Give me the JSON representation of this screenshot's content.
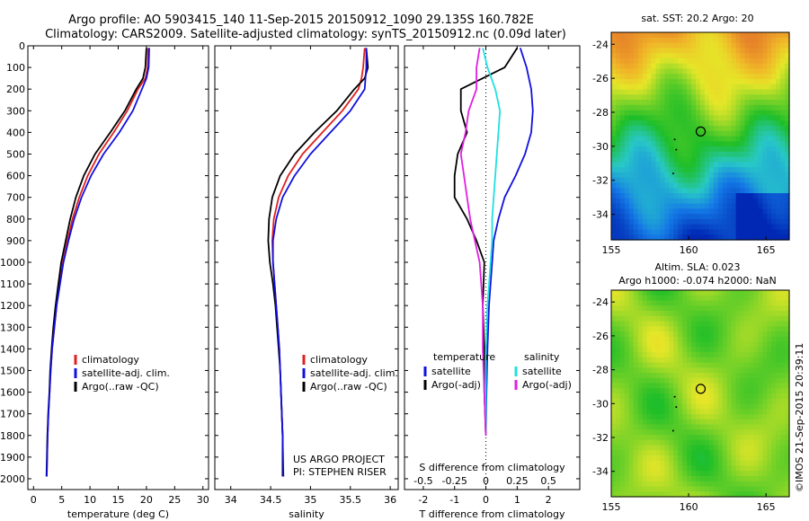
{
  "header": {
    "line1": "Argo profile: AO 5903415_140 11-Sep-2015 20150912_1090 29.135S 160.782E",
    "line2": "Climatology: CARS2009. Satellite-adjusted climatology: synTS_20150912.nc (0.09d later)"
  },
  "colors": {
    "climatology": "#e02020",
    "satellite": "#1010e0",
    "argo": "#000000",
    "sal_satellite": "#20e0e0",
    "sal_argo": "#e020e0"
  },
  "credits": {
    "project": "US ARGO PROJECT",
    "pi": "PI: STEPHEN RISER"
  },
  "timestamp": "©IMOS 21-Sep-2015 20:39:11",
  "chart_data": [
    {
      "id": "temperature",
      "type": "line",
      "xlabel": "temperature (deg C)",
      "xlim": [
        -1,
        31
      ],
      "ylim": [
        2050,
        0
      ],
      "xticks": [
        0,
        5,
        10,
        15,
        20,
        25,
        30
      ],
      "yticks": [
        0,
        100,
        200,
        300,
        400,
        500,
        600,
        700,
        800,
        900,
        1000,
        1100,
        1200,
        1300,
        1400,
        1500,
        1600,
        1700,
        1800,
        1900,
        2000
      ],
      "legend": [
        "climatology",
        "satellite-adj. clim.",
        "Argo(..raw -QC)"
      ],
      "series": [
        {
          "name": "climatology",
          "x": [
            20.3,
            20.2,
            19.8,
            18.5,
            16.6,
            14.2,
            11.6,
            9.6,
            8.1,
            6.9,
            6.0,
            5.2,
            4.6,
            4.1,
            3.7,
            3.3,
            3.05,
            2.85,
            2.65,
            2.5,
            2.35
          ],
          "y": [
            10,
            100,
            150,
            200,
            300,
            400,
            500,
            600,
            700,
            800,
            900,
            1000,
            1100,
            1200,
            1300,
            1400,
            1500,
            1600,
            1700,
            1800,
            1990
          ]
        },
        {
          "name": "satellite-adj. clim.",
          "x": [
            20.5,
            20.4,
            20.0,
            19.2,
            17.6,
            15.2,
            12.4,
            10.2,
            8.5,
            7.2,
            6.2,
            5.3,
            4.7,
            4.1,
            3.7,
            3.3,
            3.05,
            2.85,
            2.65,
            2.5,
            2.35
          ],
          "y": [
            10,
            100,
            150,
            200,
            300,
            400,
            500,
            600,
            700,
            800,
            900,
            1000,
            1100,
            1200,
            1300,
            1400,
            1500,
            1600,
            1700,
            1800,
            1990
          ]
        },
        {
          "name": "Argo(..raw -QC)",
          "x": [
            20.0,
            19.8,
            19.4,
            18.2,
            16.2,
            13.6,
            10.9,
            8.9,
            7.5,
            6.5,
            5.7,
            4.9,
            4.4,
            3.9,
            3.5,
            3.2,
            2.95,
            2.8,
            2.6,
            2.45,
            2.3
          ],
          "y": [
            10,
            100,
            150,
            200,
            300,
            400,
            500,
            600,
            700,
            800,
            900,
            1000,
            1100,
            1200,
            1300,
            1400,
            1500,
            1600,
            1700,
            1800,
            1990
          ]
        }
      ]
    },
    {
      "id": "salinity",
      "type": "line",
      "xlabel": "salinity",
      "xlim": [
        33.8,
        36.1
      ],
      "ylim": [
        2050,
        0
      ],
      "xticks": [
        34,
        34.5,
        35,
        35.5,
        36
      ],
      "xticklabels": [
        "34",
        "34.5",
        "35",
        "35.5",
        "36"
      ],
      "legend": [
        "climatology",
        "satellite-adj. clim.",
        "Argo(..raw -QC)"
      ],
      "series": [
        {
          "name": "climatology",
          "x": [
            35.68,
            35.66,
            35.64,
            35.6,
            35.4,
            35.15,
            34.9,
            34.72,
            34.6,
            34.54,
            34.52,
            34.53,
            34.55,
            34.57,
            34.59,
            34.61,
            34.62,
            34.63,
            34.64,
            34.65,
            34.65
          ],
          "y": [
            10,
            100,
            150,
            200,
            300,
            400,
            500,
            600,
            700,
            800,
            900,
            1000,
            1100,
            1200,
            1300,
            1400,
            1500,
            1600,
            1700,
            1800,
            1990
          ]
        },
        {
          "name": "satellite-adj. clim.",
          "x": [
            35.7,
            35.7,
            35.69,
            35.68,
            35.5,
            35.25,
            35.0,
            34.8,
            34.65,
            34.57,
            34.53,
            34.53,
            34.55,
            34.57,
            34.59,
            34.61,
            34.62,
            34.63,
            34.64,
            34.65,
            34.66
          ],
          "y": [
            10,
            100,
            150,
            200,
            300,
            400,
            500,
            600,
            700,
            800,
            900,
            1000,
            1100,
            1200,
            1300,
            1400,
            1500,
            1600,
            1700,
            1800,
            1990
          ]
        },
        {
          "name": "Argo(..raw -QC)",
          "x": [
            35.7,
            35.72,
            35.68,
            35.55,
            35.33,
            35.05,
            34.8,
            34.62,
            34.52,
            34.48,
            34.47,
            34.49,
            34.53,
            34.56,
            34.58,
            34.6,
            34.62,
            34.63,
            34.64,
            34.65,
            34.65
          ],
          "y": [
            10,
            100,
            150,
            200,
            300,
            400,
            500,
            600,
            700,
            800,
            900,
            1000,
            1100,
            1200,
            1300,
            1400,
            1500,
            1600,
            1700,
            1800,
            1990
          ]
        }
      ]
    },
    {
      "id": "differences",
      "type": "line",
      "xlabel": "T difference from climatology",
      "xlabel2": "S difference from climatology",
      "xlim": [
        -2.6,
        3.0
      ],
      "ylim": [
        2050,
        0
      ],
      "xticks": [
        -2,
        -1,
        0,
        1,
        2
      ],
      "xticks2": [
        -0.5,
        -0.25,
        0,
        0.25,
        0.5
      ],
      "xticks2_positions": [
        -2,
        -1,
        0,
        1,
        2
      ],
      "legend_temperature": [
        "temperature",
        "satellite",
        "Argo(-adj)"
      ],
      "legend_salinity": [
        "salinity",
        "satellite",
        "Argo(-adj)"
      ],
      "series": [
        {
          "name": "T satellite",
          "x": [
            1.1,
            1.3,
            1.45,
            1.5,
            1.45,
            1.25,
            0.95,
            0.6,
            0.4,
            0.25,
            0.2,
            0.1,
            0.05,
            0.02,
            0.0
          ],
          "y": [
            10,
            100,
            200,
            300,
            400,
            500,
            600,
            700,
            800,
            900,
            1000,
            1200,
            1400,
            1600,
            1800
          ]
        },
        {
          "name": "T Argo(-adj)",
          "x": [
            1.0,
            0.6,
            -0.8,
            -0.8,
            -0.6,
            -0.9,
            -1.0,
            -1.0,
            -0.6,
            -0.3,
            -0.05,
            -0.1,
            -0.05,
            -0.05,
            0.0
          ],
          "y": [
            10,
            100,
            200,
            300,
            400,
            500,
            600,
            700,
            800,
            900,
            1000,
            1200,
            1400,
            1600,
            1800
          ]
        },
        {
          "name": "S satellite",
          "x": [
            -0.1,
            0.05,
            0.3,
            0.45,
            0.4,
            0.35,
            0.3,
            0.25,
            0.2,
            0.2,
            0.15,
            0.05,
            0.0,
            0.0,
            0.0
          ],
          "y": [
            10,
            100,
            200,
            300,
            400,
            500,
            600,
            700,
            800,
            900,
            1000,
            1200,
            1400,
            1600,
            1800
          ]
        },
        {
          "name": "S Argo(-adj)",
          "x": [
            -0.2,
            -0.3,
            -0.3,
            -0.55,
            -0.65,
            -0.8,
            -0.7,
            -0.6,
            -0.5,
            -0.35,
            -0.2,
            -0.1,
            -0.1,
            -0.05,
            0.0
          ],
          "y": [
            10,
            100,
            200,
            300,
            400,
            500,
            600,
            700,
            800,
            900,
            1000,
            1200,
            1400,
            1600,
            1800
          ]
        }
      ]
    },
    {
      "id": "sst_map",
      "type": "heatmap",
      "title": "sat. SST: 20.2 Argo: 20",
      "xlim": [
        155,
        166.5
      ],
      "ylim": [
        -35.5,
        -23.3
      ],
      "xticks": [
        155,
        160,
        165
      ],
      "yticks": [
        -24,
        -26,
        -28,
        -30,
        -32,
        -34
      ],
      "marker": {
        "lon": 160.78,
        "lat": -29.13
      }
    },
    {
      "id": "sla_map",
      "type": "heatmap",
      "title": "Altim. SLA: 0.023",
      "subtitle": "Argo h1000: -0.074 h2000: NaN",
      "xlim": [
        155,
        166.5
      ],
      "ylim": [
        -35.5,
        -23.3
      ],
      "xticks": [
        155,
        160,
        165
      ],
      "yticks": [
        -24,
        -26,
        -28,
        -30,
        -32,
        -34
      ],
      "marker": {
        "lon": 160.78,
        "lat": -29.13
      }
    }
  ]
}
